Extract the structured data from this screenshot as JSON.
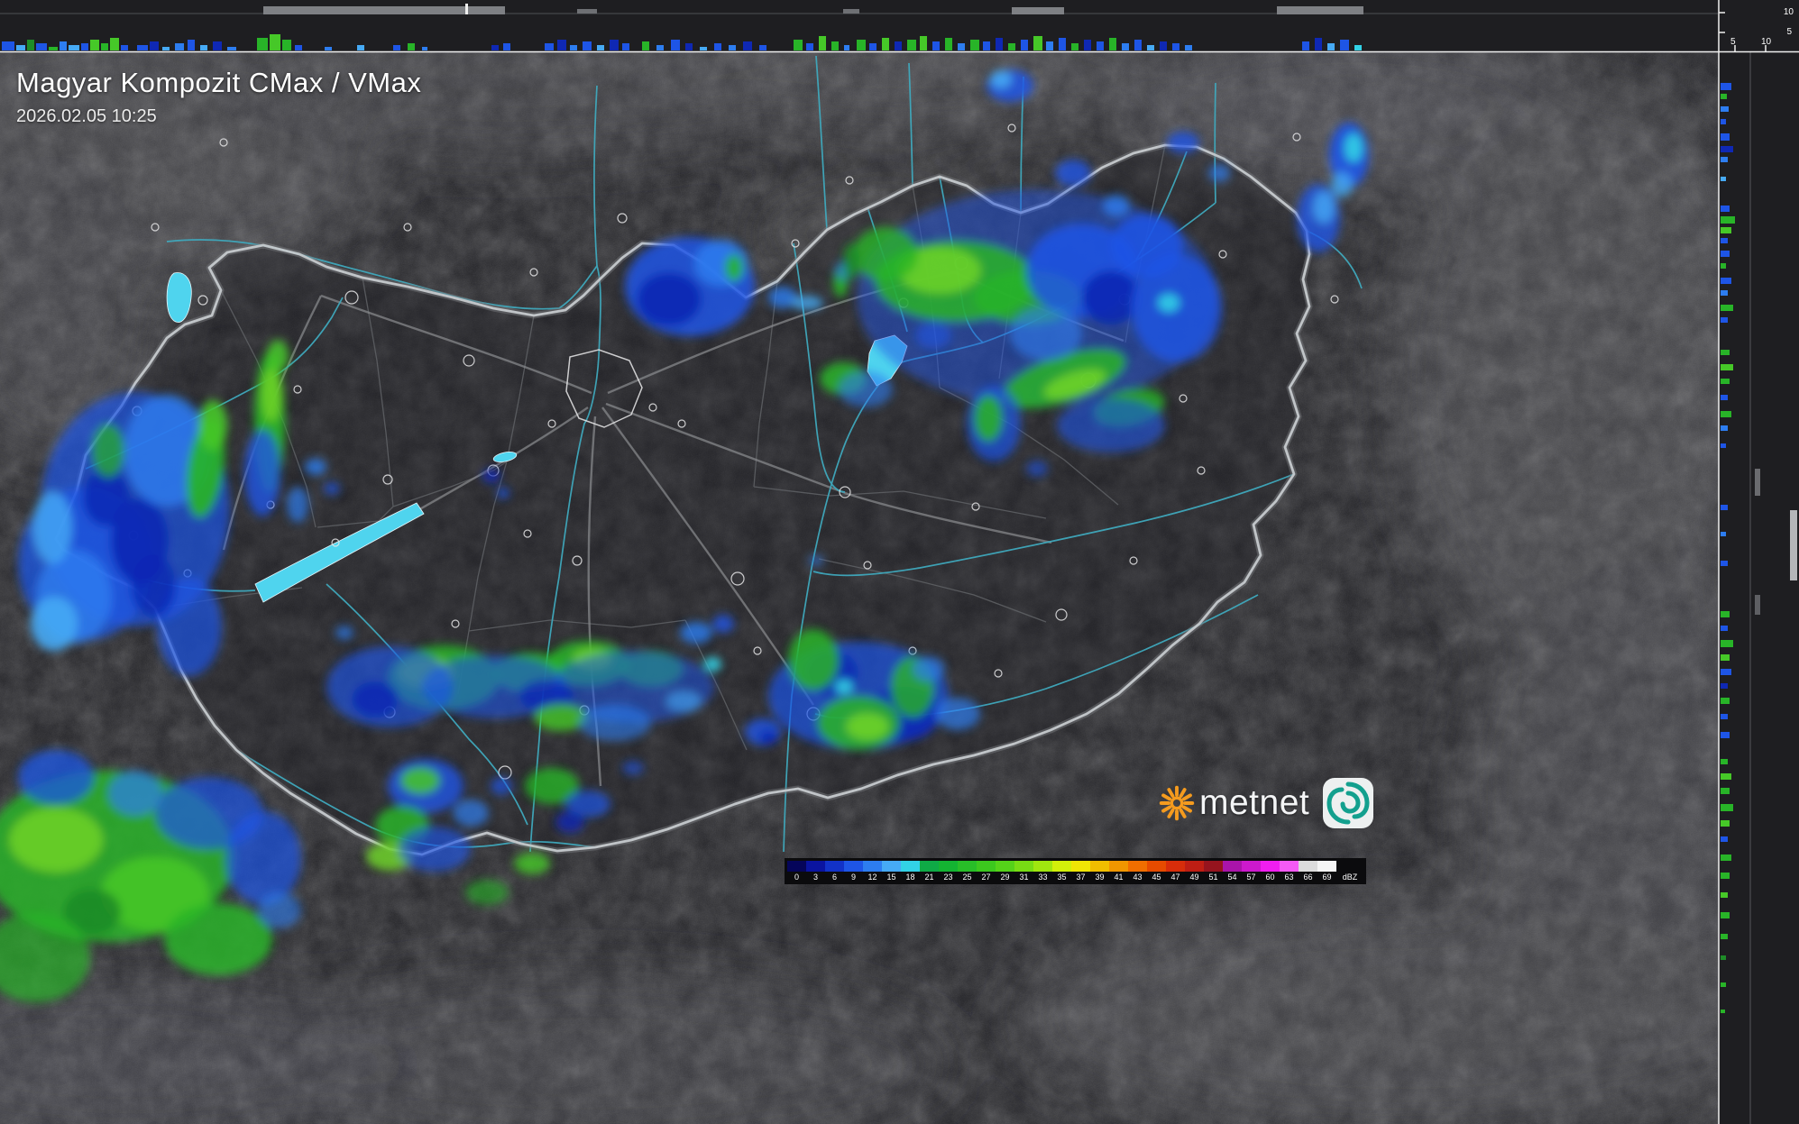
{
  "header": {
    "title": "Magyar Kompozit CMax / VMax",
    "timestamp": "2026.02.05 10:25"
  },
  "logo": {
    "brand": "metnet"
  },
  "profile_axes": {
    "top": [
      "10",
      "5"
    ],
    "right": [
      "5",
      "10"
    ]
  },
  "legend": {
    "unit": "dBZ",
    "stops": [
      {
        "label": "0",
        "color": "#05055a"
      },
      {
        "label": "3",
        "color": "#0a14a0"
      },
      {
        "label": "6",
        "color": "#1232c8"
      },
      {
        "label": "9",
        "color": "#1e55e6"
      },
      {
        "label": "12",
        "color": "#2d7df0"
      },
      {
        "label": "15",
        "color": "#46aaf5"
      },
      {
        "label": "18",
        "color": "#32d2e6"
      },
      {
        "label": "21",
        "color": "#0faa46"
      },
      {
        "label": "23",
        "color": "#14b432"
      },
      {
        "label": "25",
        "color": "#28be28"
      },
      {
        "label": "27",
        "color": "#3cc81e"
      },
      {
        "label": "29",
        "color": "#55d219"
      },
      {
        "label": "31",
        "color": "#78dc14"
      },
      {
        "label": "33",
        "color": "#a0e60f"
      },
      {
        "label": "35",
        "color": "#d2f00a"
      },
      {
        "label": "37",
        "color": "#f0e605"
      },
      {
        "label": "39",
        "color": "#f0be00"
      },
      {
        "label": "41",
        "color": "#f09600"
      },
      {
        "label": "43",
        "color": "#f06e00"
      },
      {
        "label": "45",
        "color": "#e64b00"
      },
      {
        "label": "47",
        "color": "#d72d0a"
      },
      {
        "label": "49",
        "color": "#be1e14"
      },
      {
        "label": "51",
        "color": "#96141e"
      },
      {
        "label": "54",
        "color": "#aa14aa"
      },
      {
        "label": "57",
        "color": "#cd19cd"
      },
      {
        "label": "60",
        "color": "#f01ef0"
      },
      {
        "label": "63",
        "color": "#f55af5"
      },
      {
        "label": "66",
        "color": "#dcdcdc"
      },
      {
        "label": "69",
        "color": "#f5f5f5"
      }
    ]
  },
  "palette": {
    "precip_blue_dark": "#0f28b4",
    "precip_blue": "#1e55e6",
    "precip_blue_light": "#2d7df0",
    "precip_cyan": "#46aaf5",
    "precip_green": "#28b428",
    "precip_green_bright": "#6ed228",
    "water": "#4fd4ee",
    "country_border": "#c6cacd",
    "accent_orange": "#f59b1e",
    "accent_teal": "#13a08e"
  }
}
